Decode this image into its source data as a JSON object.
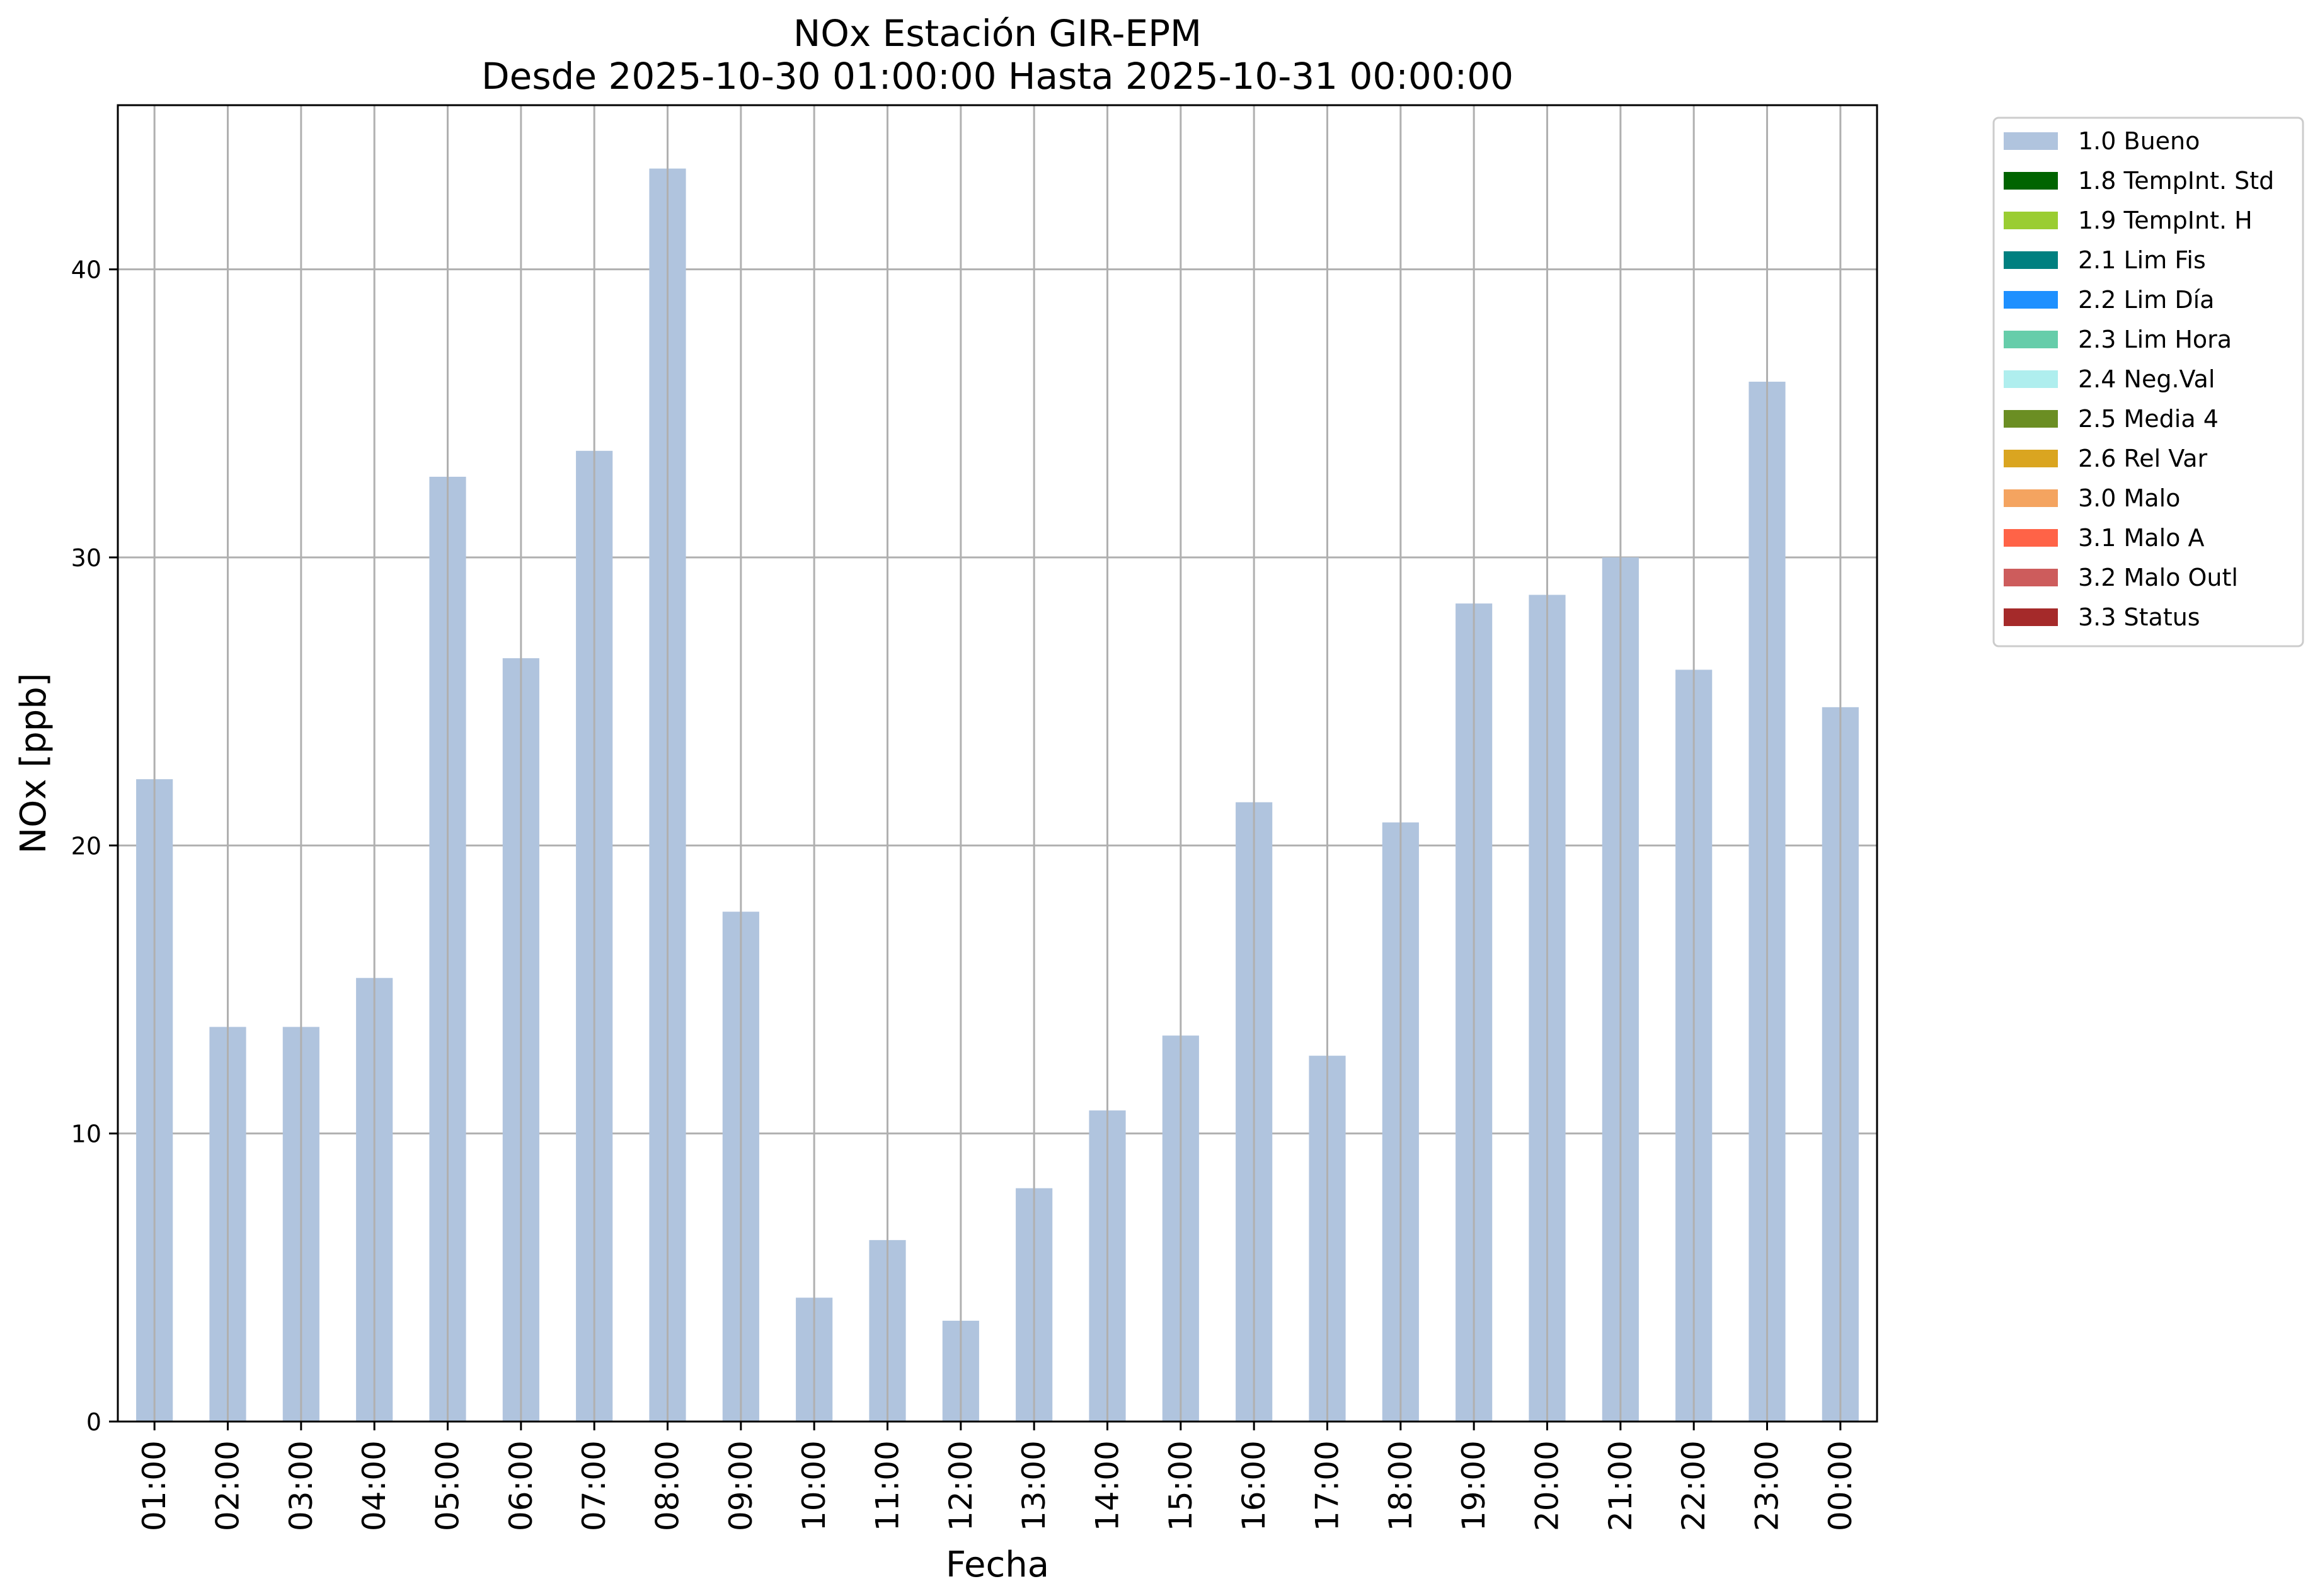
{
  "chart_data": {
    "type": "bar",
    "title": "NOx Estación GIR-EPM",
    "subtitle": "Desde 2025-10-30 01:00:00 Hasta 2025-10-31 00:00:00",
    "xlabel": "Fecha",
    "ylabel": "NOx [ppb]",
    "categories": [
      "01:00",
      "02:00",
      "03:00",
      "04:00",
      "05:00",
      "06:00",
      "07:00",
      "08:00",
      "09:00",
      "10:00",
      "11:00",
      "12:00",
      "13:00",
      "14:00",
      "15:00",
      "16:00",
      "17:00",
      "18:00",
      "19:00",
      "20:00",
      "21:00",
      "22:00",
      "23:00",
      "00:00"
    ],
    "series": [
      {
        "name": "1.0 Bueno",
        "color": "#b0c4de",
        "values": [
          22.3,
          13.7,
          13.7,
          15.4,
          32.8,
          26.5,
          33.7,
          43.5,
          17.7,
          4.3,
          6.3,
          3.5,
          8.1,
          10.8,
          13.4,
          21.5,
          12.7,
          20.8,
          28.4,
          28.7,
          30.0,
          26.1,
          36.1,
          24.8
        ]
      }
    ],
    "yticks": [
      0,
      10,
      20,
      30,
      40
    ],
    "ylim": [
      0,
      45.7
    ],
    "grid": true,
    "legend_position": "outside-right-top",
    "legend": [
      {
        "label": "1.0 Bueno",
        "color": "#b0c4de"
      },
      {
        "label": "1.8 TempInt. Std",
        "color": "#006400"
      },
      {
        "label": "1.9 TempInt. H",
        "color": "#9acd32"
      },
      {
        "label": "2.1 Lim Fis",
        "color": "#008080"
      },
      {
        "label": "2.2 Lim Día",
        "color": "#1e90ff"
      },
      {
        "label": "2.3 Lim Hora",
        "color": "#66cdaa"
      },
      {
        "label": "2.4 Neg.Val",
        "color": "#afeeee"
      },
      {
        "label": "2.5 Media 4",
        "color": "#6b8e23"
      },
      {
        "label": "2.6 Rel Var",
        "color": "#daa520"
      },
      {
        "label": "3.0 Malo",
        "color": "#f4a460"
      },
      {
        "label": "3.1 Malo A",
        "color": "#ff6347"
      },
      {
        "label": "3.2 Malo Outl",
        "color": "#cd5c5c"
      },
      {
        "label": "3.3 Status",
        "color": "#a52a2a"
      }
    ]
  }
}
